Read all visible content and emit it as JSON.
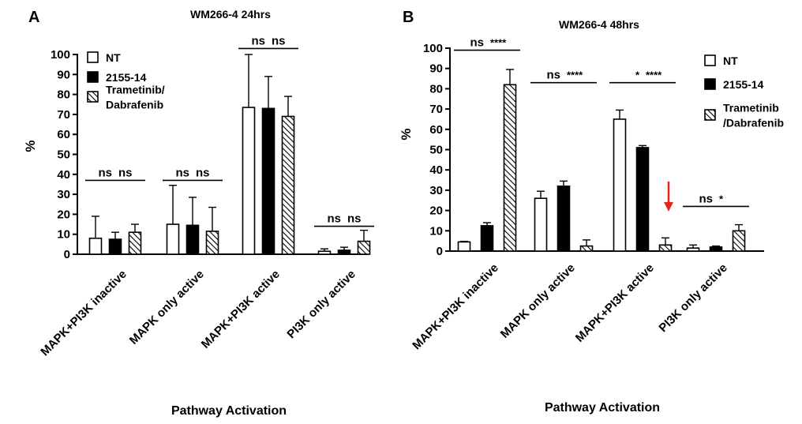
{
  "chart_data": [
    {
      "type": "bar",
      "panel": "A",
      "title": "WM266-4 24hrs",
      "xlabel": "Pathway Activation",
      "ylabel": "%",
      "ylim": [
        0,
        100
      ],
      "yticks": [
        0,
        10,
        20,
        30,
        40,
        50,
        60,
        70,
        80,
        90,
        100
      ],
      "categories": [
        "MAPK+PI3K inactive",
        "MAPK only active",
        "MAPK+PI3K active",
        "PI3K only active"
      ],
      "series": [
        {
          "name": "NT",
          "values": [
            8,
            15,
            73.5,
            1.5
          ],
          "errors": [
            11,
            19.5,
            26.5,
            1.2
          ],
          "fill": "white"
        },
        {
          "name": "2155-14",
          "values": [
            7.5,
            14.5,
            73,
            2
          ],
          "errors": [
            3.5,
            14,
            16,
            1.5
          ],
          "fill": "black"
        },
        {
          "name": "Trametinib/ Dabrafenib",
          "values": [
            11,
            11.5,
            69,
            6.5
          ],
          "errors": [
            4,
            12,
            10,
            5.5
          ],
          "fill": "hatch"
        }
      ],
      "legend_lines": [
        [
          "NT"
        ],
        [
          "2155-14"
        ],
        [
          "Trametinib/",
          "Dabrafenib"
        ]
      ],
      "legend_position": "top-left",
      "significance": [
        {
          "category": 0,
          "text": [
            "ns",
            "ns"
          ],
          "line_y": 37
        },
        {
          "category": 1,
          "text": [
            "ns",
            "ns"
          ],
          "line_y": 37
        },
        {
          "category": 2,
          "text": [
            "ns",
            "ns"
          ],
          "line_y": 103
        },
        {
          "category": 3,
          "text": [
            "ns",
            "ns"
          ],
          "line_y": 14
        }
      ]
    },
    {
      "type": "bar",
      "panel": "B",
      "title": "WM266-4 48hrs",
      "xlabel": "Pathway Activation",
      "ylabel": "%",
      "ylim": [
        0,
        100
      ],
      "yticks": [
        0,
        10,
        20,
        30,
        40,
        50,
        60,
        70,
        80,
        90,
        100
      ],
      "categories": [
        "MAPK+PI3K inactive",
        "MAPK only active",
        "MAPK+PI3K active",
        "PI3K only active"
      ],
      "series": [
        {
          "name": "NT",
          "values": [
            4.5,
            26,
            65,
            1.5
          ],
          "errors": [
            0.3,
            3.5,
            4.5,
            1.5
          ],
          "fill": "white"
        },
        {
          "name": "2155-14",
          "values": [
            12.5,
            32,
            51,
            2
          ],
          "errors": [
            1.5,
            2.5,
            1,
            0.5
          ],
          "fill": "black"
        },
        {
          "name": "Trametinib /Dabrafenib",
          "values": [
            82,
            2.5,
            3,
            10
          ],
          "errors": [
            7.5,
            3,
            3.5,
            3
          ],
          "fill": "hatch"
        }
      ],
      "legend_lines": [
        [
          "NT"
        ],
        [
          "2155-14"
        ],
        [
          "Trametinib",
          "/Dabrafenib"
        ]
      ],
      "legend_position": "top-right",
      "significance": [
        {
          "category": 0,
          "text": [
            "ns",
            "****"
          ],
          "line_y": 99
        },
        {
          "category": 1,
          "text": [
            "ns",
            "****"
          ],
          "line_y": 83
        },
        {
          "category": 2,
          "text": [
            "*",
            "****"
          ],
          "line_y": 83
        },
        {
          "category": 3,
          "text": [
            "ns",
            "*"
          ],
          "line_y": 22
        }
      ],
      "annotation": {
        "type": "arrow",
        "color": "#e0261c",
        "category": 2,
        "series": 2
      }
    }
  ]
}
